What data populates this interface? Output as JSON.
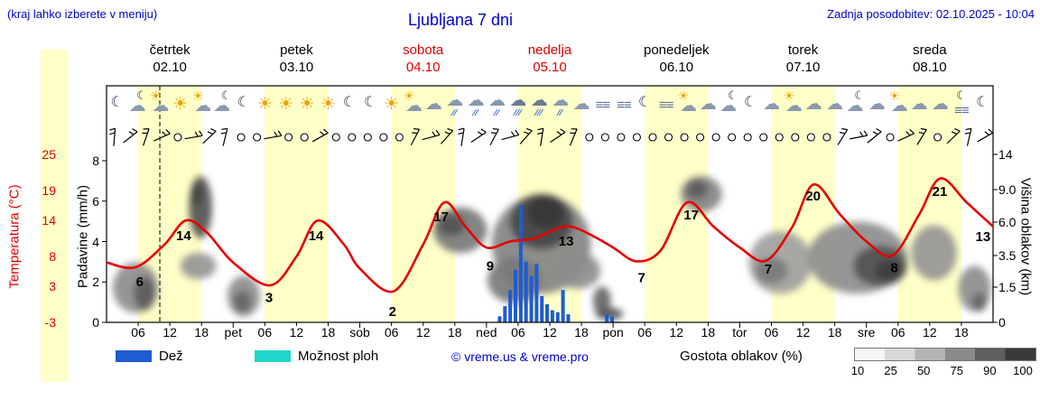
{
  "header": {
    "hint": "(kraj lahko izberete v meniju)",
    "title": "Ljubljana 7 dni",
    "updated": "Zadnja posodobitev: 02.10.2025 - 10:04"
  },
  "days": [
    {
      "name": "četrtek",
      "date": "02.10",
      "red": false,
      "icons": [
        "moon",
        "cloudmoon",
        "suncloud",
        "sun",
        "suncloud",
        "cloudmoon"
      ],
      "wind": "bbbbobbb"
    },
    {
      "name": "petek",
      "date": "03.10",
      "red": false,
      "icons": [
        "moon",
        "sun",
        "sun",
        "sun",
        "sun",
        "moon"
      ],
      "wind": "oobooboo"
    },
    {
      "name": "sobota",
      "date": "04.10",
      "red": true,
      "icons": [
        "moon",
        "sun",
        "suncloud",
        "cloud",
        "rain",
        "rain"
      ],
      "wind": "ooobbbbb"
    },
    {
      "name": "nedelja",
      "date": "05.10",
      "red": true,
      "icons": [
        "rain",
        "rainheavy",
        "rainheavy",
        "rain",
        "cloud",
        "fog"
      ],
      "wind": "bbbbbboo"
    },
    {
      "name": "ponedeljek",
      "date": "06.10",
      "red": false,
      "icons": [
        "fog",
        "moon",
        "fog",
        "suncloud",
        "cloud",
        "cloudmoon"
      ],
      "wind": "oooooooo"
    },
    {
      "name": "torek",
      "date": "07.10",
      "red": false,
      "icons": [
        "moon",
        "cloud",
        "suncloud",
        "cloud",
        "cloud",
        "cloudmoon"
      ],
      "wind": "oooooobb"
    },
    {
      "name": "sreda",
      "date": "08.10",
      "red": false,
      "icons": [
        "cloud",
        "suncloud",
        "cloud",
        "cloud",
        "fogmoon",
        "moon"
      ],
      "wind": "bobbobbb"
    }
  ],
  "xaxis": {
    "hours": [
      "06",
      "12",
      "18"
    ],
    "day_abbrevs": [
      "pet",
      "sob",
      "ned",
      "pon",
      "tor",
      "sre"
    ]
  },
  "legend": {
    "rain": "Dež",
    "showers": "Možnost ploh",
    "copyright": "© vreme.us & vreme.pro",
    "cloud_density": "Gostota oblakov (%)",
    "density_ticks": [
      "10",
      "25",
      "50",
      "75",
      "90",
      "100"
    ]
  },
  "colors": {
    "accent_blue": "#0000d2",
    "accent_red": "#e00000",
    "daylight": "#ffffc8",
    "rain_bar": "#1d5cd3",
    "showers": "#1fd6c9",
    "temp_line": "#e60000"
  },
  "chart_data": {
    "type": "line",
    "title": "Ljubljana 7 dni",
    "x_unit": "hours from 02.10 00:00",
    "x_range": [
      0,
      168
    ],
    "temp_axis": {
      "label": "Temperatura (°C)",
      "ticks": [
        25,
        19,
        14,
        8,
        3,
        -3
      ]
    },
    "precip_axis": {
      "label": "Padavine (mm/h)",
      "ticks": [
        8,
        6,
        4,
        2,
        0
      ]
    },
    "cloud_axis": {
      "label": "Višina oblakov (km)",
      "ticks": [
        "14",
        "9.0",
        "6.0",
        "3.5",
        "1.5",
        "0"
      ]
    },
    "now_line_hour": 10.1,
    "temperature_c": [
      [
        0,
        7
      ],
      [
        5.5,
        6.2
      ],
      [
        11,
        10
      ],
      [
        15,
        14
      ],
      [
        19,
        12
      ],
      [
        24,
        7
      ],
      [
        31,
        3.2
      ],
      [
        36,
        8
      ],
      [
        40,
        14
      ],
      [
        45,
        10
      ],
      [
        48,
        6
      ],
      [
        54.4,
        2.2
      ],
      [
        60,
        10
      ],
      [
        64,
        17
      ],
      [
        68,
        13
      ],
      [
        72,
        9.5
      ],
      [
        76.5,
        10.5
      ],
      [
        81,
        11
      ],
      [
        85,
        12.5
      ],
      [
        88,
        13
      ],
      [
        92,
        11.5
      ],
      [
        96,
        9.5
      ],
      [
        100.4,
        7.2
      ],
      [
        105,
        9
      ],
      [
        110,
        17
      ],
      [
        115,
        13
      ],
      [
        120,
        9.5
      ],
      [
        125,
        7.3
      ],
      [
        130,
        13
      ],
      [
        134,
        20
      ],
      [
        139,
        15
      ],
      [
        144,
        10.5
      ],
      [
        149,
        8.2
      ],
      [
        154,
        15
      ],
      [
        158,
        21
      ],
      [
        163,
        17
      ],
      [
        168,
        13
      ]
    ],
    "temp_point_labels": [
      {
        "t": 6.3,
        "v": 3.8,
        "text": "6"
      },
      {
        "t": 14.6,
        "v": 11.5,
        "text": "14"
      },
      {
        "t": 30.8,
        "v": 1.2,
        "text": "3"
      },
      {
        "t": 39.7,
        "v": 11.5,
        "text": "14"
      },
      {
        "t": 54.2,
        "v": -1.2,
        "text": "2"
      },
      {
        "t": 63.4,
        "v": 14.6,
        "text": "17"
      },
      {
        "t": 72.7,
        "v": 6.4,
        "text": "9"
      },
      {
        "t": 87.1,
        "v": 10.6,
        "text": "13"
      },
      {
        "t": 101.4,
        "v": 4.5,
        "text": "7"
      },
      {
        "t": 110.8,
        "v": 14.9,
        "text": "17"
      },
      {
        "t": 125.4,
        "v": 5.9,
        "text": "7"
      },
      {
        "t": 133.9,
        "v": 18.1,
        "text": "20"
      },
      {
        "t": 149.3,
        "v": 6.1,
        "text": "8"
      },
      {
        "t": 157.9,
        "v": 18.8,
        "text": "21"
      },
      {
        "t": 166.1,
        "v": 11.3,
        "text": "13"
      }
    ],
    "precip_mm_h": [
      [
        74.5,
        0.3
      ],
      [
        75.5,
        0.8
      ],
      [
        76.5,
        1.6
      ],
      [
        77.5,
        2.6
      ],
      [
        78.5,
        5.8
      ],
      [
        79.5,
        3.0
      ],
      [
        80.5,
        2.3
      ],
      [
        81.5,
        2.9
      ],
      [
        82.5,
        1.3
      ],
      [
        83.5,
        0.9
      ],
      [
        84.5,
        0.6
      ],
      [
        85.5,
        0.5
      ],
      [
        86.5,
        1.6
      ],
      [
        87.5,
        0.4
      ],
      [
        94.8,
        0.4
      ],
      [
        95.8,
        0.3
      ]
    ],
    "cloud_blobs": [
      {
        "t": 5.5,
        "km": 2.9,
        "rt": 4.3,
        "rkm": 2.1,
        "g": 0.5
      },
      {
        "t": 7.2,
        "km": 2.4,
        "rt": 2.0,
        "rkm": 1.4,
        "g": 0.75
      },
      {
        "t": 17.8,
        "km": 9.6,
        "rt": 2.2,
        "rkm": 2.6,
        "g": 0.8
      },
      {
        "t": 17.1,
        "km": 10.7,
        "rt": 1.0,
        "rkm": 0.9,
        "g": 0.9
      },
      {
        "t": 17.4,
        "km": 4.7,
        "rt": 3.4,
        "rkm": 1.1,
        "g": 0.45
      },
      {
        "t": 26.0,
        "km": 2.2,
        "rt": 3.1,
        "rkm": 1.7,
        "g": 0.5
      },
      {
        "t": 25.7,
        "km": 1.7,
        "rt": 1.7,
        "rkm": 0.9,
        "g": 0.7
      },
      {
        "t": 67.0,
        "km": 7.7,
        "rt": 5.1,
        "rkm": 1.9,
        "g": 0.6
      },
      {
        "t": 65.3,
        "km": 8.1,
        "rt": 2.6,
        "rkm": 0.9,
        "g": 0.8
      },
      {
        "t": 82.4,
        "km": 6.5,
        "rt": 9.4,
        "rkm": 4.1,
        "g": 0.55
      },
      {
        "t": 82.4,
        "km": 8.4,
        "rt": 6.0,
        "rkm": 2.3,
        "g": 0.85
      },
      {
        "t": 83.3,
        "km": 9.2,
        "rt": 3.4,
        "rkm": 1.4,
        "g": 0.95
      },
      {
        "t": 77.3,
        "km": 3.5,
        "rt": 5.1,
        "rkm": 1.9,
        "g": 0.6
      },
      {
        "t": 89.3,
        "km": 4.3,
        "rt": 4.3,
        "rkm": 1.5,
        "g": 0.5
      },
      {
        "t": 93.9,
        "km": 1.8,
        "rt": 1.7,
        "rkm": 1.2,
        "g": 0.7
      },
      {
        "t": 95.3,
        "km": 0.7,
        "rt": 2.6,
        "rkm": 0.5,
        "g": 0.8
      },
      {
        "t": 112.7,
        "km": 10.7,
        "rt": 3.9,
        "rkm": 1.5,
        "g": 0.55
      },
      {
        "t": 111.9,
        "km": 11.1,
        "rt": 2.1,
        "rkm": 0.8,
        "g": 0.75
      },
      {
        "t": 127.7,
        "km": 5.0,
        "rt": 6.0,
        "rkm": 2.6,
        "g": 0.4
      },
      {
        "t": 126.0,
        "km": 4.3,
        "rt": 3.1,
        "rkm": 1.1,
        "g": 0.6
      },
      {
        "t": 142.3,
        "km": 5.4,
        "rt": 9.4,
        "rkm": 3.0,
        "g": 0.5
      },
      {
        "t": 146.6,
        "km": 4.7,
        "rt": 5.1,
        "rkm": 1.7,
        "g": 0.8
      },
      {
        "t": 148.3,
        "km": 4.3,
        "rt": 2.6,
        "rkm": 0.9,
        "g": 0.9
      },
      {
        "t": 156.8,
        "km": 5.8,
        "rt": 4.3,
        "rkm": 2.3,
        "g": 0.45
      },
      {
        "t": 164.5,
        "km": 2.8,
        "rt": 3.1,
        "rkm": 1.9,
        "g": 0.5
      },
      {
        "t": 165.4,
        "km": 1.7,
        "rt": 1.4,
        "rkm": 0.8,
        "g": 0.7
      }
    ]
  }
}
